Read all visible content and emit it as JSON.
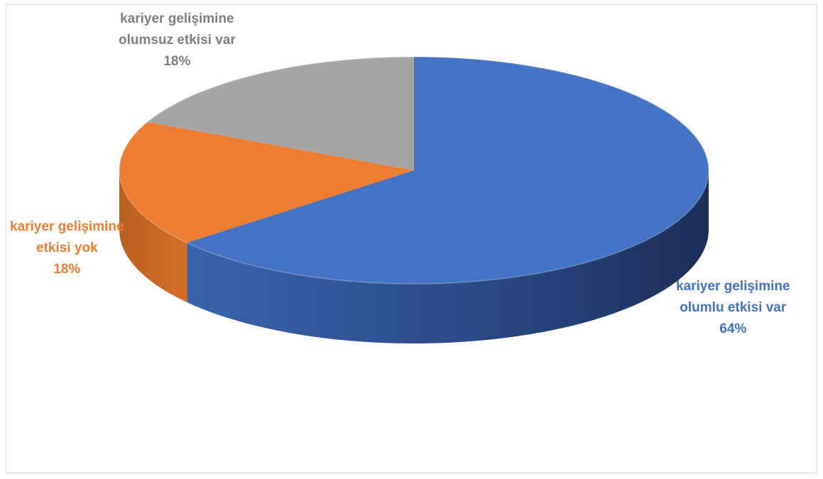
{
  "chart_data": {
    "type": "pie",
    "style": "3d",
    "title": "",
    "slices": [
      {
        "label_line1": "kariyer gelişimine",
        "label_line2": "olumlu etkisi var",
        "percent_label": "64%",
        "value": 64,
        "color": "#4472c4"
      },
      {
        "label_line1": "kariyer gelişimine",
        "label_line2": "etkisi yok",
        "percent_label": "18%",
        "value": 18,
        "color": "#ed7d31"
      },
      {
        "label_line1": "kariyer gelişimine",
        "label_line2": "olumsuz etkisi var",
        "percent_label": "18%",
        "value": 18,
        "color": "#a5a5a5"
      }
    ],
    "legend": "none"
  }
}
